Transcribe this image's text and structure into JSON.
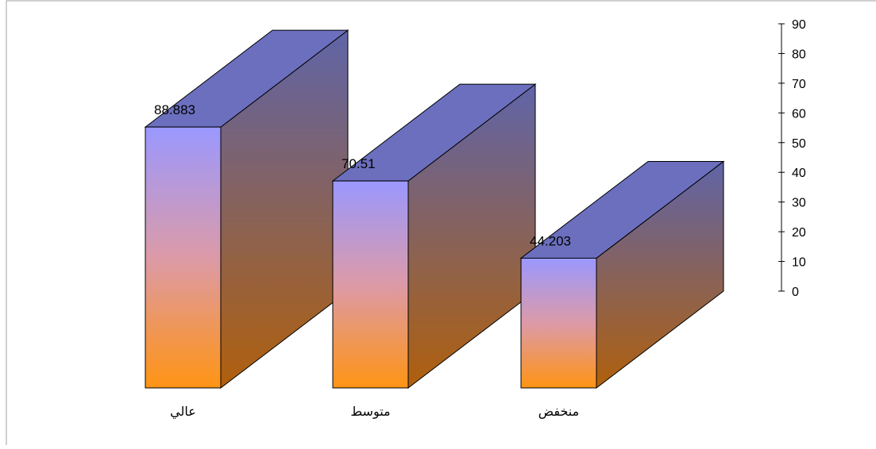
{
  "chart_data": {
    "type": "bar",
    "style": "3d-box",
    "categories": [
      "عالي",
      "متوسط",
      "منخفض"
    ],
    "values": [
      88.883,
      70.51,
      44.203
    ],
    "data_labels": [
      "88.883",
      "70.51",
      "44.203"
    ],
    "ylim": [
      0,
      90
    ],
    "yticks": [
      0,
      10,
      20,
      30,
      40,
      50,
      60,
      70,
      80,
      90
    ],
    "ytick_labels": [
      "0",
      "10",
      "20",
      "30",
      "40",
      "50",
      "60",
      "70",
      "80",
      "90"
    ],
    "yaxis_side": "right",
    "grid": false,
    "legend": "none",
    "title": "",
    "xlabel": "",
    "ylabel": ""
  },
  "colors": {
    "front_top": "#9a98ff",
    "front_mid": "#dc9aa8",
    "front_bottom": "#ff9414",
    "side_top": "#5f64a8",
    "side_bottom": "#b0600c",
    "top_face": "#6b6fbe",
    "outline": "#000000",
    "frame": "#a0a0a0"
  }
}
